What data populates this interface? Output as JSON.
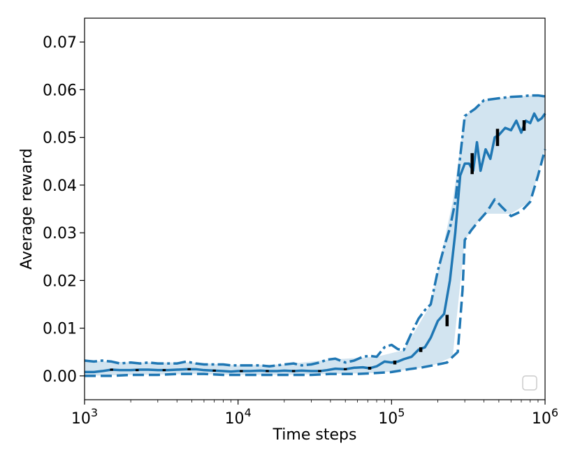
{
  "chart_data": {
    "type": "line",
    "title": "",
    "xlabel": "Time steps",
    "ylabel": "Average reward",
    "xscale": "log",
    "xlim": [
      1000,
      1000000
    ],
    "ylim": [
      -0.005,
      0.075
    ],
    "xticks": [
      {
        "value": 1000,
        "base": "10",
        "exp": "3"
      },
      {
        "value": 10000,
        "base": "10",
        "exp": "4"
      },
      {
        "value": 100000,
        "base": "10",
        "exp": "5"
      },
      {
        "value": 1000000,
        "base": "10",
        "exp": "6"
      }
    ],
    "yticks": [
      {
        "value": 0.0,
        "label": "0.00"
      },
      {
        "value": 0.01,
        "label": "0.01"
      },
      {
        "value": 0.02,
        "label": "0.02"
      },
      {
        "value": 0.03,
        "label": "0.03"
      },
      {
        "value": 0.04,
        "label": "0.04"
      },
      {
        "value": 0.05,
        "label": "0.05"
      },
      {
        "value": 0.06,
        "label": "0.06"
      },
      {
        "value": 0.07,
        "label": "0.07"
      }
    ],
    "grid": false,
    "legend": {
      "placement": "lower-right",
      "entries": []
    },
    "color": "#1f77b4",
    "fill_color": "#1f77b4",
    "errorbar_color": "#000000",
    "series": [
      {
        "style": "solid",
        "x": [
          1000,
          1150,
          1300,
          1500,
          1700,
          2000,
          2300,
          2600,
          3000,
          3500,
          4000,
          4600,
          5300,
          6000,
          7000,
          8000,
          9000,
          10000,
          12000,
          14000,
          16000,
          18000,
          20000,
          23000,
          26000,
          30000,
          34000,
          38000,
          43000,
          50000,
          57000,
          65000,
          72000,
          80000,
          90000,
          100000,
          110000,
          120000,
          135000,
          150000,
          165000,
          180000,
          200000,
          220000,
          240000,
          260000,
          280000,
          300000,
          320000,
          340000,
          360000,
          380000,
          410000,
          440000,
          470000,
          500000,
          550000,
          600000,
          650000,
          700000,
          750000,
          800000,
          850000,
          900000,
          950000,
          1000000
        ],
        "y": [
          0.0008,
          0.0008,
          0.001,
          0.0013,
          0.0012,
          0.0012,
          0.0013,
          0.0013,
          0.0012,
          0.0012,
          0.0013,
          0.0014,
          0.0014,
          0.0012,
          0.0011,
          0.001,
          0.0009,
          0.001,
          0.001,
          0.0011,
          0.001,
          0.001,
          0.0011,
          0.001,
          0.0011,
          0.001,
          0.001,
          0.0012,
          0.0015,
          0.0014,
          0.0017,
          0.0018,
          0.0016,
          0.002,
          0.003,
          0.0028,
          0.003,
          0.0035,
          0.004,
          0.0055,
          0.006,
          0.008,
          0.0115,
          0.013,
          0.02,
          0.03,
          0.042,
          0.0445,
          0.0445,
          0.043,
          0.049,
          0.043,
          0.0475,
          0.0455,
          0.05,
          0.0505,
          0.052,
          0.0515,
          0.0535,
          0.051,
          0.0535,
          0.053,
          0.055,
          0.0535,
          0.054,
          0.055
        ]
      },
      {
        "style": "dashdot",
        "x": [
          1000,
          1150,
          1300,
          1500,
          1700,
          2000,
          2300,
          2600,
          3000,
          3500,
          4000,
          4600,
          5300,
          6000,
          7000,
          8000,
          9000,
          10000,
          12000,
          14000,
          16000,
          18000,
          20000,
          23000,
          26000,
          30000,
          34000,
          38000,
          43000,
          50000,
          57000,
          65000,
          72000,
          80000,
          90000,
          100000,
          110000,
          120000,
          135000,
          150000,
          165000,
          180000,
          200000,
          220000,
          240000,
          260000,
          280000,
          300000,
          350000,
          400000,
          500000,
          600000,
          700000,
          800000,
          900000,
          1000000
        ],
        "y": [
          0.0032,
          0.003,
          0.0032,
          0.003,
          0.0026,
          0.0028,
          0.0026,
          0.0028,
          0.0026,
          0.0026,
          0.0026,
          0.003,
          0.0026,
          0.0024,
          0.0024,
          0.0024,
          0.0022,
          0.0022,
          0.0022,
          0.0022,
          0.002,
          0.0022,
          0.0024,
          0.0026,
          0.0022,
          0.0024,
          0.0028,
          0.0034,
          0.0036,
          0.0028,
          0.0032,
          0.004,
          0.0042,
          0.004,
          0.006,
          0.0065,
          0.0056,
          0.0054,
          0.009,
          0.012,
          0.0138,
          0.015,
          0.022,
          0.027,
          0.031,
          0.0365,
          0.046,
          0.0545,
          0.056,
          0.0578,
          0.0582,
          0.0585,
          0.0586,
          0.0588,
          0.0588,
          0.0586
        ]
      },
      {
        "style": "dashed",
        "x": [
          1000,
          1500,
          2000,
          3000,
          4000,
          5000,
          6000,
          8000,
          10000,
          15000,
          20000,
          30000,
          40000,
          60000,
          80000,
          100000,
          130000,
          160000,
          200000,
          230000,
          250000,
          270000,
          290000,
          300000,
          330000,
          370000,
          420000,
          470000,
          520000,
          600000,
          700000,
          800000,
          900000,
          1000000
        ],
        "y": [
          0.0,
          0.0,
          0.0002,
          0.0002,
          0.0004,
          0.0004,
          0.0004,
          0.0002,
          0.0002,
          0.0002,
          0.0002,
          0.0002,
          0.0004,
          0.0004,
          0.0006,
          0.0008,
          0.0014,
          0.0018,
          0.0024,
          0.0028,
          0.004,
          0.005,
          0.018,
          0.0285,
          0.0305,
          0.0325,
          0.0345,
          0.037,
          0.0355,
          0.0335,
          0.0345,
          0.0365,
          0.042,
          0.0475
        ]
      }
    ],
    "band": {
      "x": [
        1000,
        2000,
        5000,
        10000,
        20000,
        40000,
        80000,
        120000,
        180000,
        250000,
        300000,
        400000,
        600000,
        800000,
        1000000
      ],
      "upper": [
        0.0032,
        0.0028,
        0.0028,
        0.0022,
        0.0024,
        0.0034,
        0.004,
        0.0054,
        0.015,
        0.0365,
        0.0545,
        0.0578,
        0.0585,
        0.0588,
        0.0586
      ],
      "lower": [
        0.0,
        0.0002,
        0.0004,
        0.0002,
        0.0002,
        0.0004,
        0.0006,
        0.0012,
        0.002,
        0.004,
        0.0285,
        0.034,
        0.034,
        0.0365,
        0.0475
      ]
    },
    "errorbars": [
      {
        "x": 1500,
        "y": 0.0013,
        "err": 0.0002
      },
      {
        "x": 2200,
        "y": 0.0012,
        "err": 0.0001
      },
      {
        "x": 3300,
        "y": 0.0012,
        "err": 0.0001
      },
      {
        "x": 4800,
        "y": 0.0014,
        "err": 0.0002
      },
      {
        "x": 7000,
        "y": 0.0011,
        "err": 0.0001
      },
      {
        "x": 10500,
        "y": 0.001,
        "err": 0.0001
      },
      {
        "x": 15500,
        "y": 0.001,
        "err": 0.0001
      },
      {
        "x": 23000,
        "y": 0.001,
        "err": 0.0001
      },
      {
        "x": 34000,
        "y": 0.001,
        "err": 0.0001
      },
      {
        "x": 50000,
        "y": 0.0014,
        "err": 0.0002
      },
      {
        "x": 72000,
        "y": 0.0016,
        "err": 0.0003
      },
      {
        "x": 105000,
        "y": 0.0028,
        "err": 0.0004
      },
      {
        "x": 155000,
        "y": 0.0055,
        "err": 0.0005
      },
      {
        "x": 230000,
        "y": 0.0116,
        "err": 0.0012
      },
      {
        "x": 335000,
        "y": 0.0445,
        "err": 0.0022
      },
      {
        "x": 490000,
        "y": 0.05,
        "err": 0.0018
      },
      {
        "x": 730000,
        "y": 0.0525,
        "err": 0.0011
      }
    ]
  }
}
